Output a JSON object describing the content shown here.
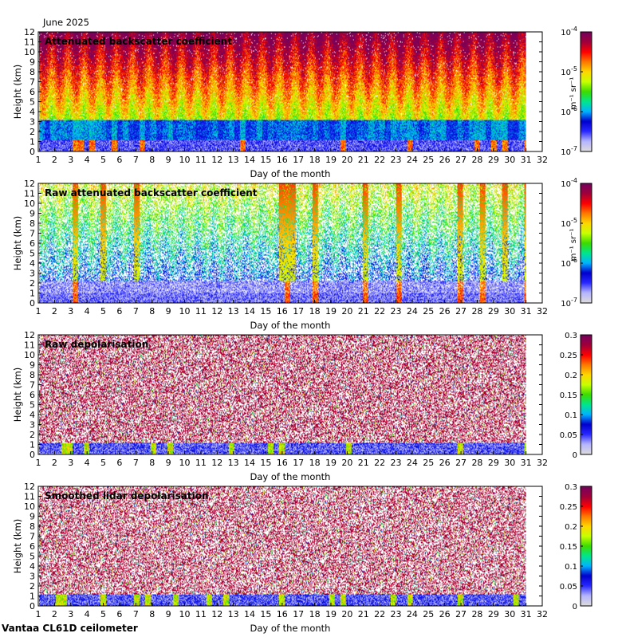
{
  "header": {
    "month_label": "June 2025"
  },
  "footer": {
    "instrument_label": "Vantaa CL61D ceilometer"
  },
  "chart_data": [
    {
      "type": "heatmap",
      "title": "Attenuated backscatter coefficient",
      "xlabel": "Day of the month",
      "ylabel": "Height (km)",
      "xlim": [
        1,
        32
      ],
      "ylim": [
        0,
        12
      ],
      "xticks": [
        "1",
        "2",
        "3",
        "4",
        "5",
        "6",
        "7",
        "8",
        "9",
        "10",
        "11",
        "12",
        "13",
        "14",
        "15",
        "16",
        "17",
        "18",
        "19",
        "20",
        "21",
        "22",
        "23",
        "24",
        "25",
        "26",
        "27",
        "28",
        "29",
        "30",
        "31",
        "32"
      ],
      "yticks": [
        "0",
        "1",
        "2",
        "3",
        "4",
        "5",
        "6",
        "7",
        "8",
        "9",
        "10",
        "11",
        "12"
      ],
      "data_extent_days": [
        1,
        31
      ],
      "colorbar": {
        "scale": "log",
        "range": [
          1e-07,
          0.0001
        ],
        "unit": "m⁻¹ sr⁻¹",
        "ticks": [
          {
            "base": "10",
            "exp": "-7"
          },
          {
            "base": "10",
            "exp": "-6"
          },
          {
            "base": "10",
            "exp": "-5"
          },
          {
            "base": "10",
            "exp": "-4"
          }
        ]
      }
    },
    {
      "type": "heatmap",
      "title": "Raw attenuated backscatter coefficient",
      "xlabel": "Day of the month",
      "ylabel": "Height (km)",
      "xlim": [
        1,
        32
      ],
      "ylim": [
        0,
        12
      ],
      "xticks": [
        "1",
        "2",
        "3",
        "4",
        "5",
        "6",
        "7",
        "8",
        "9",
        "10",
        "11",
        "12",
        "13",
        "14",
        "15",
        "16",
        "17",
        "18",
        "19",
        "20",
        "21",
        "22",
        "23",
        "24",
        "25",
        "26",
        "27",
        "28",
        "29",
        "30",
        "31",
        "32"
      ],
      "yticks": [
        "0",
        "1",
        "2",
        "3",
        "4",
        "5",
        "6",
        "7",
        "8",
        "9",
        "10",
        "11",
        "12"
      ],
      "data_extent_days": [
        1,
        31
      ],
      "colorbar": {
        "scale": "log",
        "range": [
          1e-07,
          0.0001
        ],
        "unit": "m⁻¹ sr⁻¹",
        "ticks": [
          {
            "base": "10",
            "exp": "-7"
          },
          {
            "base": "10",
            "exp": "-6"
          },
          {
            "base": "10",
            "exp": "-5"
          },
          {
            "base": "10",
            "exp": "-4"
          }
        ]
      }
    },
    {
      "type": "heatmap",
      "title": "Raw depolarisation",
      "xlabel": "Day of the month",
      "ylabel": "Height (km)",
      "xlim": [
        1,
        32
      ],
      "ylim": [
        0,
        12
      ],
      "xticks": [
        "1",
        "2",
        "3",
        "4",
        "5",
        "6",
        "7",
        "8",
        "9",
        "10",
        "11",
        "12",
        "13",
        "14",
        "15",
        "16",
        "17",
        "18",
        "19",
        "20",
        "21",
        "22",
        "23",
        "24",
        "25",
        "26",
        "27",
        "28",
        "29",
        "30",
        "31",
        "32"
      ],
      "yticks": [
        "0",
        "1",
        "2",
        "3",
        "4",
        "5",
        "6",
        "7",
        "8",
        "9",
        "10",
        "11",
        "12"
      ],
      "data_extent_days": [
        1,
        31
      ],
      "colorbar": {
        "scale": "linear",
        "range": [
          0,
          0.3
        ],
        "ticks": [
          "0",
          "0.05",
          "0.1",
          "0.15",
          "0.2",
          "0.25",
          "0.3"
        ]
      }
    },
    {
      "type": "heatmap",
      "title": "Smoothed lidar depolarisation",
      "xlabel": "Day of the month",
      "ylabel": "Height (km)",
      "xlim": [
        1,
        32
      ],
      "ylim": [
        0,
        12
      ],
      "xticks": [
        "1",
        "2",
        "3",
        "4",
        "5",
        "6",
        "7",
        "8",
        "9",
        "10",
        "11",
        "12",
        "13",
        "14",
        "15",
        "16",
        "17",
        "18",
        "19",
        "20",
        "21",
        "22",
        "23",
        "24",
        "25",
        "26",
        "27",
        "28",
        "29",
        "30",
        "31",
        "32"
      ],
      "yticks": [
        "0",
        "1",
        "2",
        "3",
        "4",
        "5",
        "6",
        "7",
        "8",
        "9",
        "10",
        "11",
        "12"
      ],
      "data_extent_days": [
        1,
        31
      ],
      "colorbar": {
        "scale": "linear",
        "range": [
          0,
          0.3
        ],
        "ticks": [
          "0",
          "0.05",
          "0.1",
          "0.15",
          "0.2",
          "0.25",
          "0.3"
        ]
      }
    }
  ],
  "colormap": [
    "#dcdcdc",
    "#b4b4ff",
    "#2828ff",
    "#0000cc",
    "#00b4ff",
    "#00e68c",
    "#3cdc00",
    "#c8ff00",
    "#ffd700",
    "#ff7800",
    "#ff0000",
    "#a0003c",
    "#78005a"
  ]
}
